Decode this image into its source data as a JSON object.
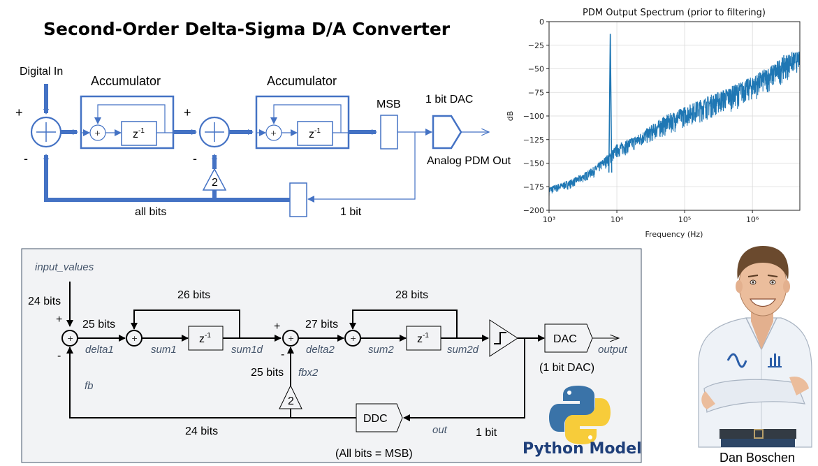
{
  "title": "Second-Order Delta-Sigma D/A Converter",
  "top_diagram": {
    "digital_in": "Digital In",
    "accumulator1": "Accumulator",
    "accumulator2": "Accumulator",
    "z_inv": "z",
    "z_exp": "-1",
    "msb": "MSB",
    "dac_label": "1 bit DAC",
    "analog_out": "Analog PDM Out",
    "all_bits": "all bits",
    "one_bit": "1 bit",
    "gain": "2",
    "plus": "+",
    "minus": "-"
  },
  "bottom_diagram": {
    "input_values": "input_values",
    "bits24_in": "24 bits",
    "bits25": "25 bits",
    "bits26": "26 bits",
    "bits27": "27 bits",
    "bits28": "28 bits",
    "bits25_fb": "25 bits",
    "bits24_fb": "24 bits",
    "bit1": "1 bit",
    "delta1": "delta1",
    "sum1": "sum1",
    "sum1d": "sum1d",
    "delta2": "delta2",
    "sum2": "sum2",
    "sum2d": "sum2d",
    "fbx2": "fbx2",
    "fb": "fb",
    "out": "out",
    "output": "output",
    "dac": "DAC",
    "dac_note": "(1 bit DAC)",
    "ddc": "DDC",
    "ddc_note": "(All bits = MSB)",
    "gain": "2",
    "z_inv": "z",
    "z_exp": "-1",
    "plus": "+",
    "minus": "-",
    "python_model": "Python Model"
  },
  "author": "Dan Boschen",
  "colors": {
    "block_blue": "#4472c4",
    "series_blue": "#1f77b4",
    "panel_bg": "#f2f3f5",
    "python_text": "#1f3f7a",
    "signal_label": "#44546a"
  },
  "chart_data": {
    "type": "line",
    "title": "PDM Output Spectrum (prior to filtering)",
    "xlabel": "Frequency (Hz)",
    "ylabel": "dB",
    "xscale": "log",
    "xlim": [
      1000,
      5000000
    ],
    "ylim": [
      -200,
      0
    ],
    "xticks": [
      1000,
      10000,
      100000,
      1000000
    ],
    "xtick_labels": [
      "10³",
      "10⁴",
      "10⁵",
      "10⁶"
    ],
    "yticks": [
      0,
      -25,
      -50,
      -75,
      -100,
      -125,
      -150,
      -175,
      -200
    ],
    "ytick_labels": [
      "0",
      "−25",
      "−50",
      "−75",
      "−100",
      "−125",
      "−150",
      "−175",
      "−200"
    ],
    "grid": true,
    "series": [
      {
        "values_upper": [
          [
            1000,
            -175
          ],
          [
            2000,
            -168
          ],
          [
            3000,
            -162
          ],
          [
            5000,
            -152
          ],
          [
            8000,
            -138
          ],
          [
            10000,
            -130
          ],
          [
            20000,
            -120
          ],
          [
            50000,
            -100
          ],
          [
            100000,
            -90
          ],
          [
            200000,
            -80
          ],
          [
            500000,
            -68
          ],
          [
            1000000,
            -58
          ],
          [
            2000000,
            -45
          ],
          [
            3000000,
            -35
          ],
          [
            4000000,
            -32
          ],
          [
            5000000,
            -32
          ]
        ],
        "values_lower": [
          [
            1000,
            -190
          ],
          [
            2000,
            -183
          ],
          [
            3000,
            -178
          ],
          [
            5000,
            -170
          ],
          [
            8000,
            -160
          ],
          [
            10000,
            -155
          ],
          [
            20000,
            -145
          ],
          [
            50000,
            -135
          ],
          [
            100000,
            -125
          ],
          [
            200000,
            -120
          ],
          [
            500000,
            -110
          ],
          [
            1000000,
            -100
          ],
          [
            2000000,
            -90
          ],
          [
            3000000,
            -80
          ],
          [
            4000000,
            -72
          ],
          [
            5000000,
            -65
          ]
        ],
        "tone": {
          "freq": 8000,
          "level": -13
        }
      }
    ]
  }
}
